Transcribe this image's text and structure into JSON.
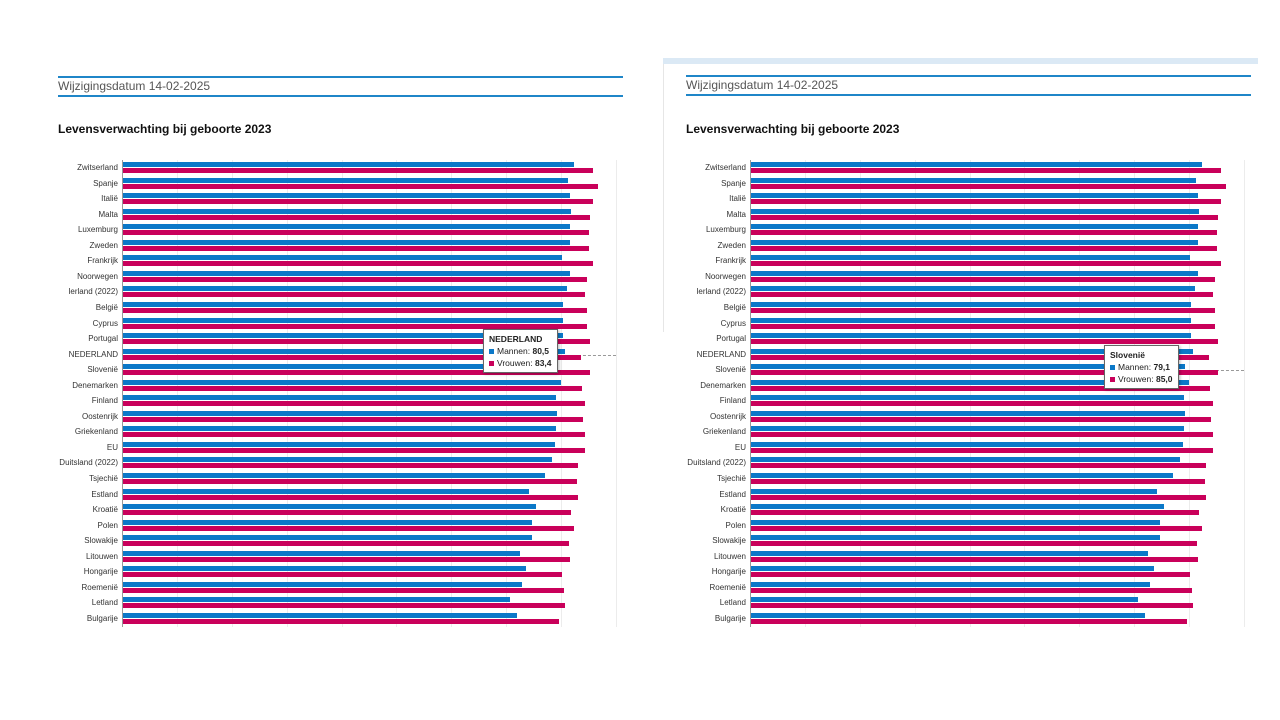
{
  "header": {
    "date_label": "Wijzigingsdatum 14-02-2025"
  },
  "chart_data": {
    "type": "bar",
    "orientation": "horizontal",
    "title": "Levensverwachting bij geboorte 2023",
    "xlim": [
      0,
      90
    ],
    "grid": true,
    "colors": {
      "Mannen": "#0b78c8",
      "Vrouwen": "#c9005a"
    },
    "categories": [
      "Zwitserland",
      "Spanje",
      "Italië",
      "Malta",
      "Luxemburg",
      "Zweden",
      "Frankrijk",
      "Noorwegen",
      "Ierland (2022)",
      "België",
      "Cyprus",
      "Portugal",
      "NEDERLAND",
      "Slovenië",
      "Denemarken",
      "Finland",
      "Oostenrijk",
      "Griekenland",
      "EU",
      "Duitsland (2022)",
      "Tsjechië",
      "Estland",
      "Kroatië",
      "Polen",
      "Slowakije",
      "Litouwen",
      "Hongarije",
      "Roemenië",
      "Letland",
      "Bulgarije"
    ],
    "series": [
      {
        "name": "Mannen",
        "values": [
          82.1,
          81.0,
          81.5,
          81.7,
          81.5,
          81.5,
          80.0,
          81.4,
          80.8,
          80.1,
          80.2,
          80.1,
          80.5,
          79.1,
          79.8,
          78.9,
          79.0,
          78.9,
          78.7,
          78.2,
          76.9,
          73.9,
          75.2,
          74.6,
          74.6,
          72.4,
          73.4,
          72.7,
          70.5,
          71.8
        ]
      },
      {
        "name": "Vrouwen",
        "values": [
          85.7,
          86.5,
          85.7,
          85.1,
          84.9,
          84.9,
          85.7,
          84.5,
          84.1,
          84.5,
          84.5,
          85.0,
          83.4,
          85.0,
          83.7,
          84.2,
          83.8,
          84.1,
          84.1,
          82.9,
          82.8,
          82.9,
          81.7,
          82.2,
          81.3,
          81.5,
          80.0,
          80.3,
          80.6,
          79.4
        ]
      }
    ]
  },
  "tooltips": [
    {
      "index": 12,
      "title": "NEDERLAND",
      "mannen_label": "Mannen:",
      "mannen_value": "80,5",
      "vrouwen_label": "Vrouwen:",
      "vrouwen_value": "83,4"
    },
    {
      "index": 13,
      "title": "Slovenië",
      "mannen_label": "Mannen:",
      "mannen_value": "79,1",
      "vrouwen_label": "Vrouwen:",
      "vrouwen_value": "85,0"
    }
  ]
}
